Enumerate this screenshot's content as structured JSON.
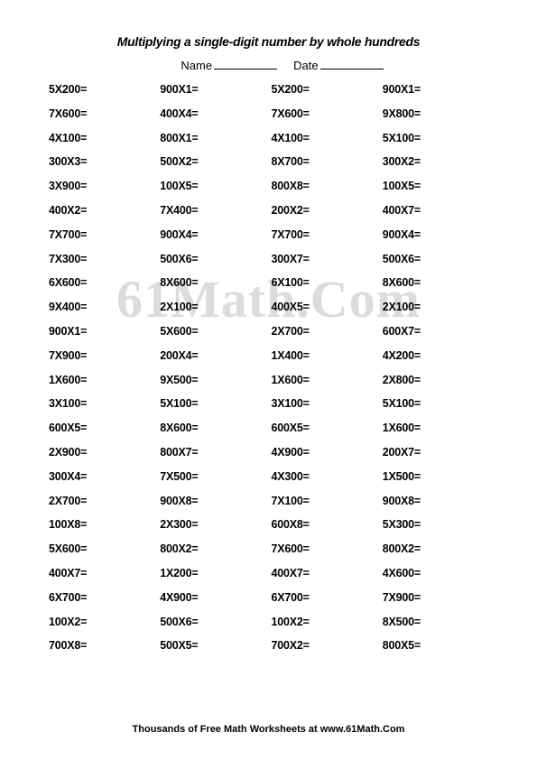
{
  "title": "Multiplying a single-digit number by whole hundreds",
  "nameLabel": "Name",
  "dateLabel": "Date",
  "watermark": "61Math.Com",
  "footer": "Thousands of Free Math Worksheets at www.61Math.Com",
  "columns": [
    [
      "5X200=",
      "7X600=",
      "4X100=",
      "300X3=",
      "3X900=",
      "400X2=",
      "7X700=",
      "7X300=",
      "6X600=",
      "9X400=",
      "900X1=",
      "7X900=",
      "1X600=",
      "3X100=",
      "600X5=",
      "2X900=",
      "300X4=",
      "2X700=",
      "100X8=",
      "5X600=",
      "400X7=",
      "6X700=",
      "100X2=",
      "700X8="
    ],
    [
      "900X1=",
      "400X4=",
      "800X1=",
      "500X2=",
      "100X5=",
      "7X400=",
      "900X4=",
      "500X6=",
      "8X600=",
      "2X100=",
      "5X600=",
      "200X4=",
      "9X500=",
      "5X100=",
      "8X600=",
      "800X7=",
      "7X500=",
      "900X8=",
      "2X300=",
      "800X2=",
      "1X200=",
      "4X900=",
      "500X6=",
      "500X5="
    ],
    [
      "5X200=",
      "7X600=",
      "4X100=",
      "8X700=",
      "800X8=",
      "200X2=",
      "7X700=",
      "300X7=",
      "6X100=",
      "400X5=",
      "2X700=",
      "1X400=",
      "1X600=",
      "3X100=",
      "600X5=",
      "4X900=",
      "4X300=",
      "7X100=",
      "600X8=",
      "7X600=",
      "400X7=",
      "6X700=",
      "100X2=",
      "700X2="
    ],
    [
      "900X1=",
      "9X800=",
      "5X100=",
      "300X2=",
      "100X5=",
      "400X7=",
      "900X4=",
      "500X6=",
      "8X600=",
      "2X100=",
      "600X7=",
      "4X200=",
      "2X800=",
      "5X100=",
      "1X600=",
      "200X7=",
      "1X500=",
      "900X8=",
      "5X300=",
      "800X2=",
      "4X600=",
      "7X900=",
      "8X500=",
      "800X5="
    ]
  ]
}
